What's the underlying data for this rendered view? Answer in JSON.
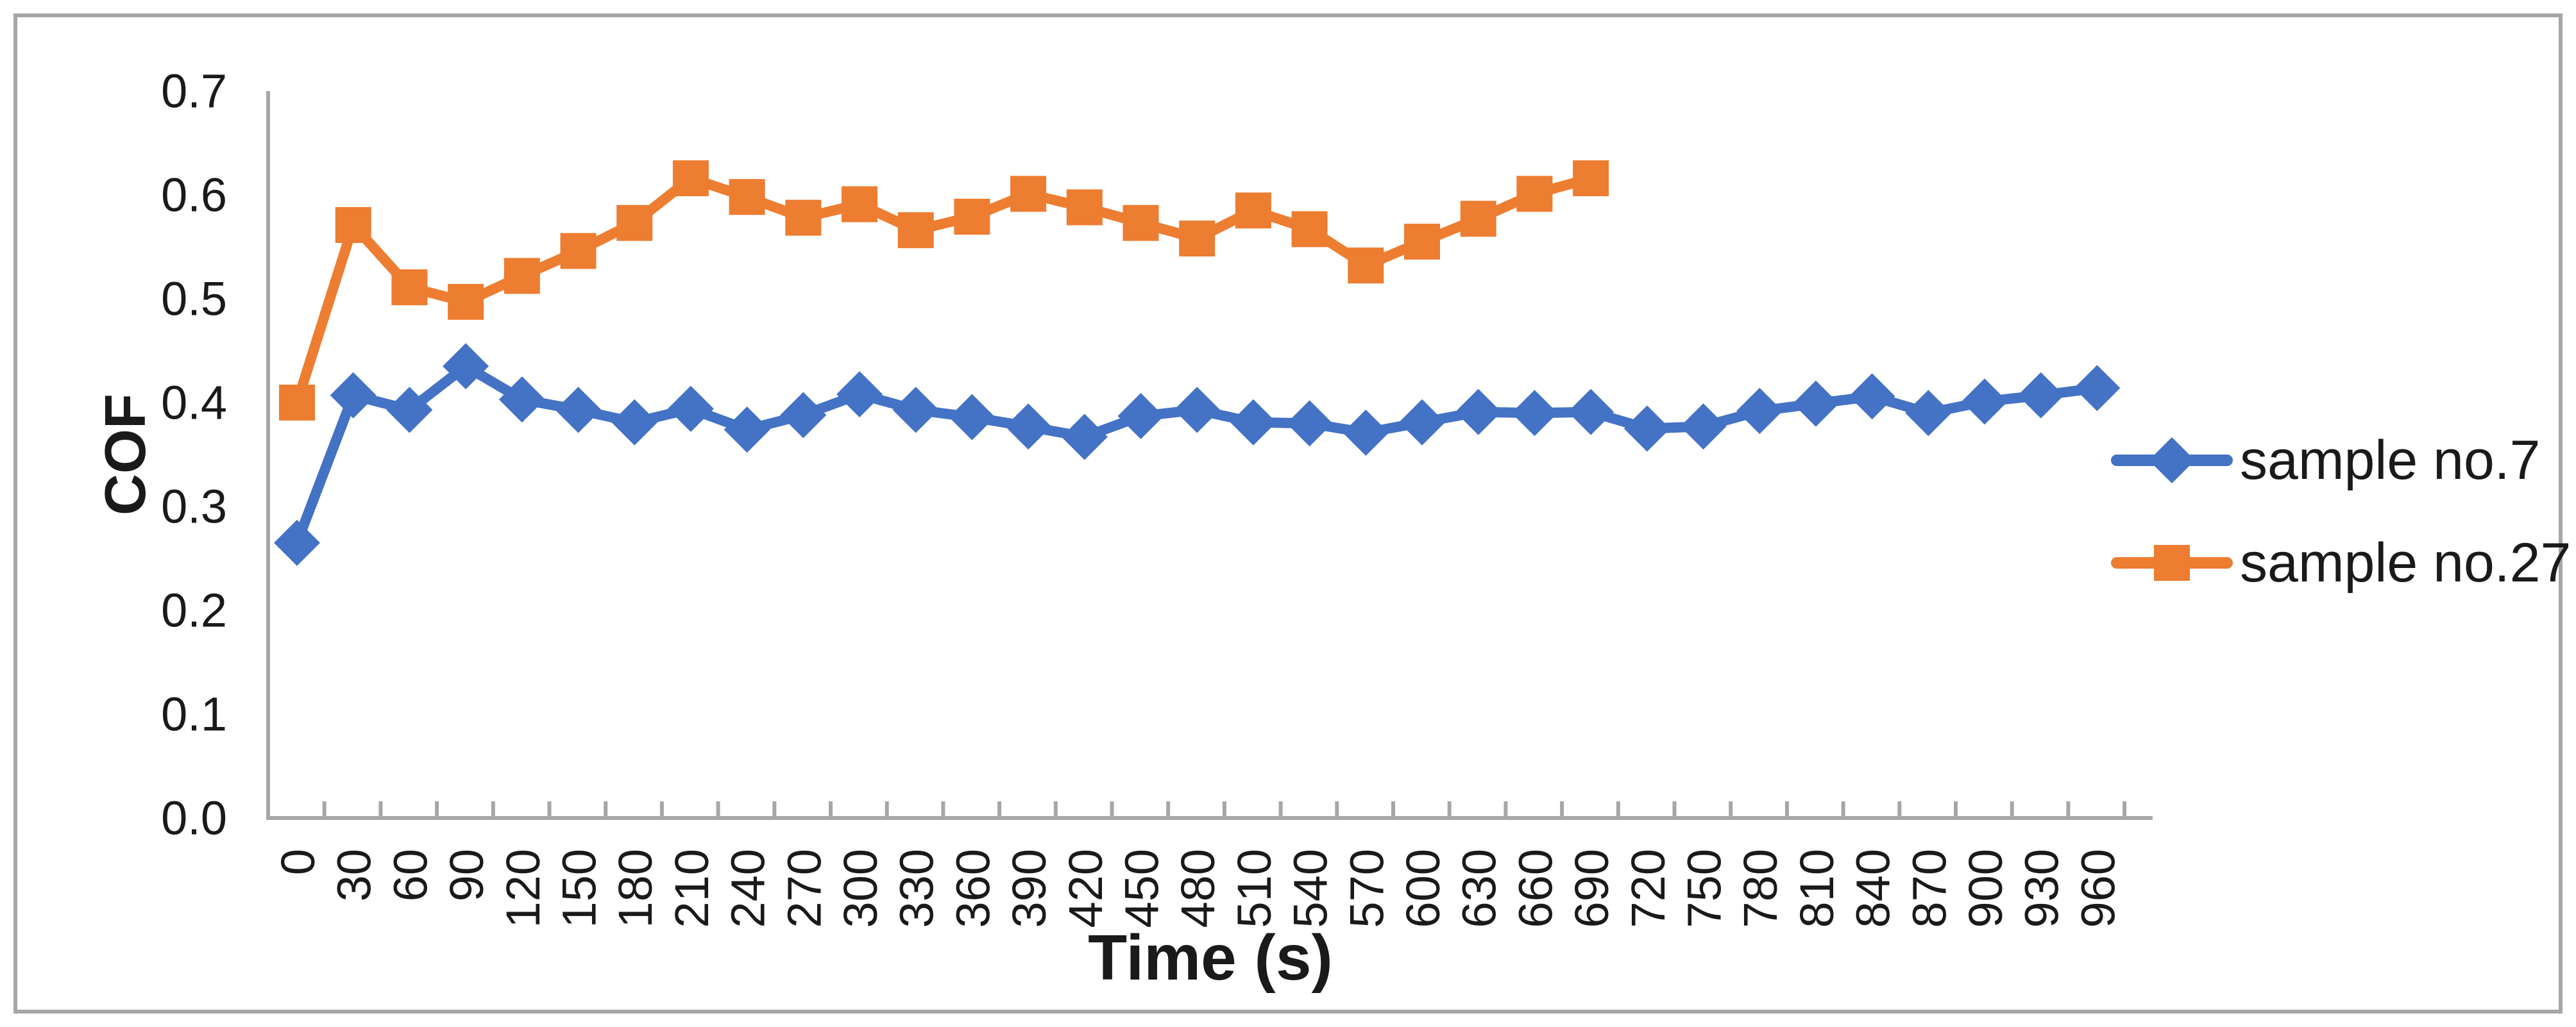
{
  "chart_data": {
    "type": "line",
    "title": "",
    "xlabel": "Time (s)",
    "ylabel": "COF",
    "x": [
      0,
      30,
      60,
      90,
      120,
      150,
      180,
      210,
      240,
      270,
      300,
      330,
      360,
      390,
      420,
      450,
      480,
      510,
      540,
      570,
      600,
      630,
      660,
      690,
      720,
      750,
      780,
      810,
      840,
      870,
      900,
      930,
      960
    ],
    "series": [
      {
        "name": "sample no.7",
        "marker": "diamond",
        "color": "#4472C4",
        "values": [
          0.265,
          0.407,
          0.393,
          0.435,
          0.403,
          0.393,
          0.381,
          0.394,
          0.374,
          0.388,
          0.408,
          0.393,
          0.386,
          0.377,
          0.367,
          0.387,
          0.393,
          0.381,
          0.38,
          0.371,
          0.381,
          0.391,
          0.39,
          0.391,
          0.375,
          0.377,
          0.392,
          0.399,
          0.406,
          0.39,
          0.401,
          0.407,
          0.414
        ]
      },
      {
        "name": "sample no.27",
        "marker": "square",
        "color": "#ED7D31",
        "values": [
          0.4,
          0.571,
          0.511,
          0.497,
          0.522,
          0.546,
          0.573,
          0.616,
          0.598,
          0.578,
          0.591,
          0.566,
          0.579,
          0.601,
          0.588,
          0.573,
          0.558,
          0.585,
          0.567,
          0.532,
          0.555,
          0.577,
          0.601,
          0.616
        ]
      }
    ],
    "ylim": [
      0.0,
      0.7
    ],
    "ytick_step": 0.1,
    "ytick_labels": [
      "0.0",
      "0.1",
      "0.2",
      "0.3",
      "0.4",
      "0.5",
      "0.6",
      "0.7"
    ],
    "xtick_labels": [
      "0",
      "30",
      "60",
      "90",
      "120",
      "150",
      "180",
      "210",
      "240",
      "270",
      "300",
      "330",
      "360",
      "390",
      "420",
      "450",
      "480",
      "510",
      "540",
      "570",
      "600",
      "630",
      "660",
      "690",
      "720",
      "750",
      "780",
      "810",
      "840",
      "870",
      "900",
      "930",
      "960"
    ],
    "grid": false,
    "legend_position": "right",
    "x_labels_rotated_deg": -90,
    "colors": {
      "axis": "#A6A6A6",
      "border": "#A6A6A6",
      "text": "#1A1A1A",
      "background": "#FFFFFF"
    }
  }
}
